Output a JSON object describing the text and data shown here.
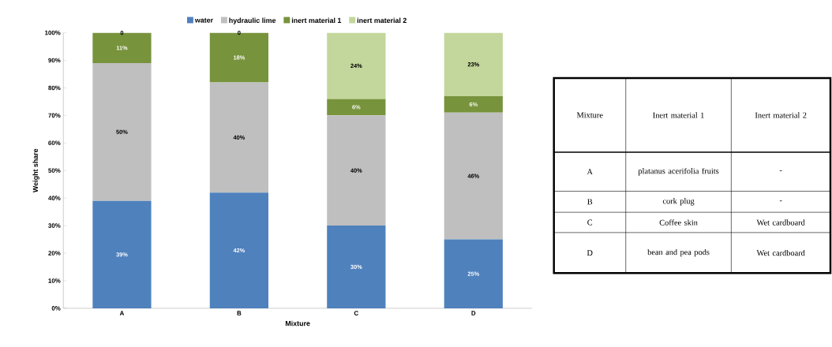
{
  "chart_data": [
    {
      "type": "bar",
      "stacked": true,
      "xlabel": "Mixture",
      "ylabel": "Weight share",
      "categories": [
        "A",
        "B",
        "C",
        "D"
      ],
      "ylim": [
        0,
        100
      ],
      "yticks": [
        {
          "value": 0,
          "label": "0%"
        },
        {
          "value": 10,
          "label": "10%"
        },
        {
          "value": 20,
          "label": "20%"
        },
        {
          "value": 30,
          "label": "30%"
        },
        {
          "value": 40,
          "label": "40%"
        },
        {
          "value": 50,
          "label": "50%"
        },
        {
          "value": 60,
          "label": "60%"
        },
        {
          "value": 70,
          "label": "70%"
        },
        {
          "value": 80,
          "label": "80%"
        },
        {
          "value": 90,
          "label": "90%"
        },
        {
          "value": 100,
          "label": "100%"
        }
      ],
      "legend": "top",
      "grid": false,
      "series": [
        {
          "name": "water",
          "color": "#4f81bd",
          "values": [
            39,
            42,
            30,
            25
          ],
          "value_labels": [
            "39%",
            "42%",
            "30%",
            "25%"
          ]
        },
        {
          "name": "hydraulic lime",
          "color": "#bfbfbf",
          "values": [
            50,
            40,
            40,
            46
          ],
          "value_labels": [
            "50%",
            "40%",
            "40%",
            "46%"
          ]
        },
        {
          "name": "inert material 1",
          "color": "#77933c",
          "values": [
            11,
            18,
            6,
            6
          ],
          "value_labels": [
            "11%",
            "18%",
            "6%",
            "6%"
          ]
        },
        {
          "name": "inert material 2",
          "color": "#c3d69b",
          "values": [
            0,
            0,
            24,
            23
          ],
          "value_labels": [
            "0",
            "0",
            "24%",
            "23%"
          ]
        }
      ]
    },
    {
      "type": "other",
      "annotations": [
        "Mixture",
        "Inert material 1",
        "Inert material 2",
        "A",
        "platanus acerifolia fruits",
        "-",
        "B",
        "cork plug",
        "-",
        "C",
        "Coffee skin",
        "Wet cardboard",
        "D",
        "bean and pea pods",
        "Wet cardboard"
      ]
    }
  ]
}
